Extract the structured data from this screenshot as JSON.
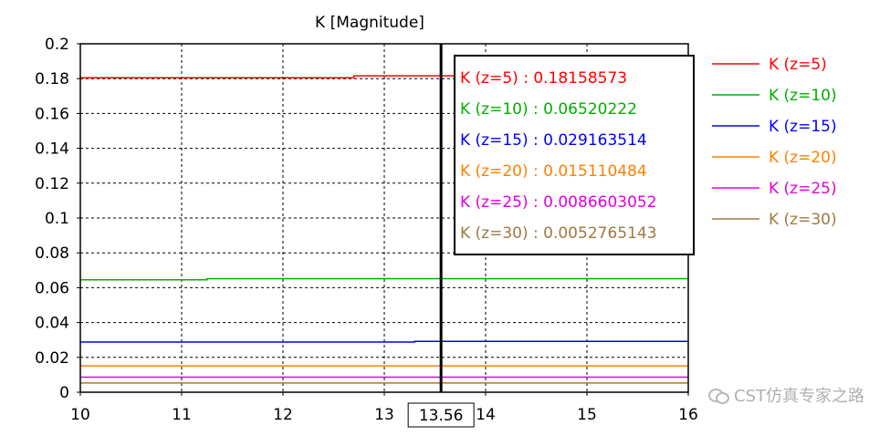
{
  "chart_data": {
    "type": "line",
    "title": "K [Magnitude]",
    "xlabel": "",
    "ylabel": "",
    "xlim": [
      10,
      16
    ],
    "ylim": [
      0,
      0.2
    ],
    "x_ticks": [
      "10",
      "11",
      "12",
      "13",
      "14",
      "15",
      "16"
    ],
    "y_ticks": [
      "0",
      "0.02",
      "0.04",
      "0.06",
      "0.08",
      "0.1",
      "0.12",
      "0.14",
      "0.16",
      "0.18",
      "0.2"
    ],
    "grid": true,
    "legend_position": "right",
    "cursor": {
      "x": 13.56,
      "label": "13.56"
    },
    "series": [
      {
        "name": "K (z=5)",
        "color": "#ff0000",
        "x": [
          10,
          12.7,
          12.7,
          16
        ],
        "y": [
          0.1805,
          0.1805,
          0.18158573,
          0.18158573
        ],
        "marker_value": "0.18158573"
      },
      {
        "name": "K (z=10)",
        "color": "#00b000",
        "x": [
          10,
          11.25,
          11.25,
          16
        ],
        "y": [
          0.0645,
          0.0645,
          0.06520222,
          0.06520222
        ],
        "marker_value": "0.06520222"
      },
      {
        "name": "K (z=15)",
        "color": "#0000ff",
        "x": [
          10,
          13.3,
          13.3,
          16
        ],
        "y": [
          0.0288,
          0.0288,
          0.029163514,
          0.029163514
        ],
        "marker_value": "0.029163514"
      },
      {
        "name": "K (z=20)",
        "color": "#ff8000",
        "x": [
          10,
          16
        ],
        "y": [
          0.015110484,
          0.015110484
        ],
        "marker_value": "0.015110484"
      },
      {
        "name": "K (z=25)",
        "color": "#e000e0",
        "x": [
          10,
          16
        ],
        "y": [
          0.0086603052,
          0.0086603052
        ],
        "marker_value": "0.0086603052"
      },
      {
        "name": "K (z=30)",
        "color": "#a07840",
        "x": [
          10,
          16
        ],
        "y": [
          0.0052765143,
          0.0052765143
        ],
        "marker_value": "0.0052765143"
      }
    ]
  },
  "watermark": {
    "text": "CST仿真专家之路",
    "icon": "wechat-icon"
  }
}
